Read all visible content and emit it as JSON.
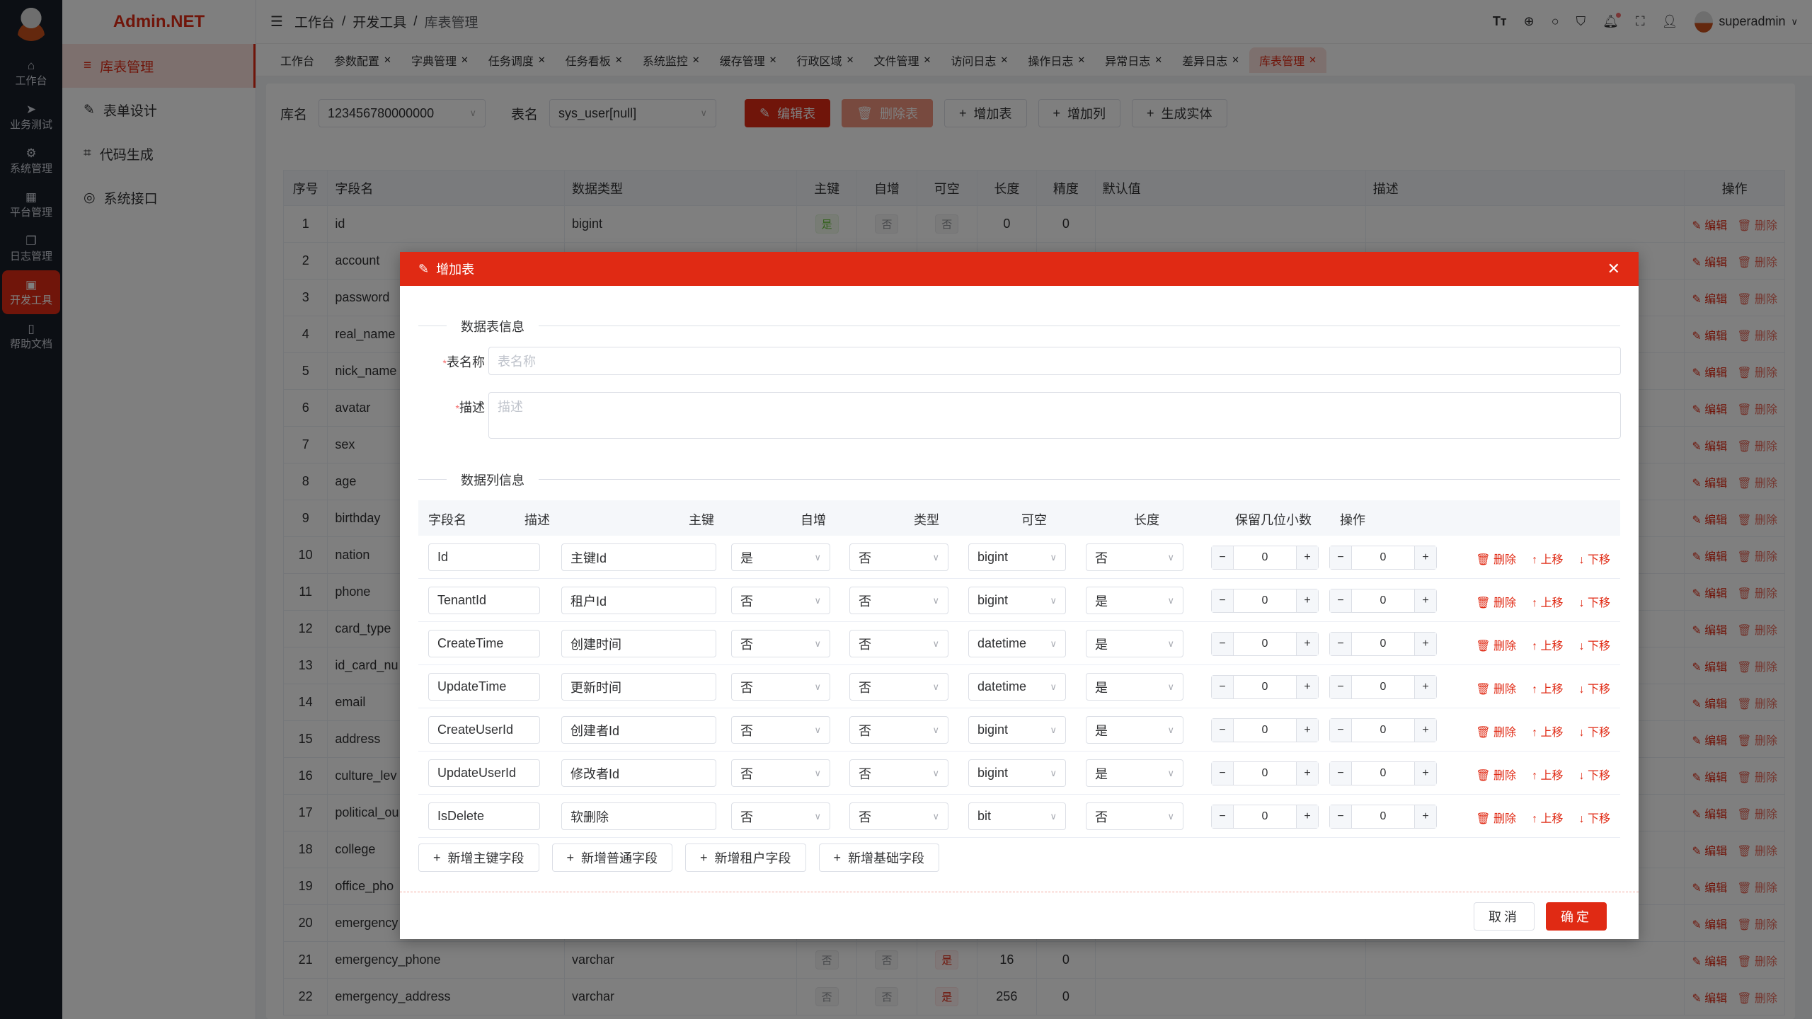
{
  "app": {
    "brand": "Admin.NET",
    "watermark": "Admin.NET",
    "accent": "#e02a14"
  },
  "rail": [
    {
      "icon": "home-icon",
      "label": "工作台"
    },
    {
      "icon": "send-icon",
      "label": "业务测试"
    },
    {
      "icon": "gear-icon",
      "label": "系统管理"
    },
    {
      "icon": "grid-icon",
      "label": "平台管理"
    },
    {
      "icon": "copy-icon",
      "label": "日志管理"
    },
    {
      "icon": "chip-icon",
      "label": "开发工具",
      "active": true
    },
    {
      "icon": "notebook-icon",
      "label": "帮助文档"
    }
  ],
  "sidebar": [
    {
      "icon": "database-icon",
      "label": "库表管理",
      "active": true
    },
    {
      "icon": "edit-icon",
      "label": "表单设计"
    },
    {
      "icon": "crop-icon",
      "label": "代码生成"
    },
    {
      "icon": "lifebuoy-icon",
      "label": "系统接口"
    }
  ],
  "breadcrumb": [
    "工作台",
    "开发工具",
    "库表管理"
  ],
  "user": {
    "name": "superadmin"
  },
  "tabs": [
    {
      "label": "工作台"
    },
    {
      "label": "参数配置"
    },
    {
      "label": "字典管理"
    },
    {
      "label": "任务调度"
    },
    {
      "label": "任务看板"
    },
    {
      "label": "系统监控"
    },
    {
      "label": "缓存管理"
    },
    {
      "label": "行政区域"
    },
    {
      "label": "文件管理"
    },
    {
      "label": "访问日志"
    },
    {
      "label": "操作日志"
    },
    {
      "label": "异常日志"
    },
    {
      "label": "差异日志"
    },
    {
      "label": "库表管理",
      "active": true
    }
  ],
  "toolbar": {
    "db_label": "库名",
    "db_value": "123456780000000",
    "table_label": "表名",
    "table_value": "sys_user[null]",
    "edit": "编辑表",
    "delete": "删除表",
    "add_table": "增加表",
    "add_column": "增加列",
    "gen_entity": "生成实体"
  },
  "bg_table": {
    "headers": [
      "序号",
      "字段名",
      "数据类型",
      "主键",
      "自增",
      "可空",
      "长度",
      "精度",
      "默认值",
      "描述",
      "操作"
    ],
    "edit": "编辑",
    "delete": "删除",
    "rows": [
      {
        "no": "1",
        "name": "id",
        "type": "bigint",
        "pk": "是",
        "inc": "否",
        "null": "否",
        "len": "0",
        "prec": "0"
      },
      {
        "no": "2",
        "name": "account"
      },
      {
        "no": "3",
        "name": "password"
      },
      {
        "no": "4",
        "name": "real_name"
      },
      {
        "no": "5",
        "name": "nick_name"
      },
      {
        "no": "6",
        "name": "avatar"
      },
      {
        "no": "7",
        "name": "sex"
      },
      {
        "no": "8",
        "name": "age"
      },
      {
        "no": "9",
        "name": "birthday"
      },
      {
        "no": "10",
        "name": "nation"
      },
      {
        "no": "11",
        "name": "phone"
      },
      {
        "no": "12",
        "name": "card_type"
      },
      {
        "no": "13",
        "name": "id_card_nu"
      },
      {
        "no": "14",
        "name": "email"
      },
      {
        "no": "15",
        "name": "address"
      },
      {
        "no": "16",
        "name": "culture_lev"
      },
      {
        "no": "17",
        "name": "political_ou"
      },
      {
        "no": "18",
        "name": "college"
      },
      {
        "no": "19",
        "name": "office_pho"
      },
      {
        "no": "20",
        "name": "emergency"
      },
      {
        "no": "21",
        "name": "emergency_phone",
        "type": "varchar",
        "pk": "否",
        "inc": "否",
        "null": "是",
        "len": "16",
        "prec": "0"
      },
      {
        "no": "22",
        "name": "emergency_address",
        "type": "varchar",
        "pk": "否",
        "inc": "否",
        "null": "是",
        "len": "256",
        "prec": "0"
      }
    ]
  },
  "dialog": {
    "title": "增加表",
    "section_table": "数据表信息",
    "name_label": "表名称",
    "name_placeholder": "表名称",
    "desc_label": "描述",
    "desc_placeholder": "描述",
    "section_columns": "数据列信息",
    "col_headers": [
      "字段名",
      "描述",
      "主键",
      "自增",
      "类型",
      "可空",
      "长度",
      "保留几位小数",
      "操作"
    ],
    "row_ops": {
      "delete": "删除",
      "up": "上移",
      "down": "下移"
    },
    "rows": [
      {
        "name": "Id",
        "desc": "主键Id",
        "pk": "是",
        "inc": "否",
        "type": "bigint",
        "null": "否",
        "len": "0",
        "dec": "0"
      },
      {
        "name": "TenantId",
        "desc": "租户Id",
        "pk": "否",
        "inc": "否",
        "type": "bigint",
        "null": "是",
        "len": "0",
        "dec": "0"
      },
      {
        "name": "CreateTime",
        "desc": "创建时间",
        "pk": "否",
        "inc": "否",
        "type": "datetime",
        "null": "是",
        "len": "0",
        "dec": "0"
      },
      {
        "name": "UpdateTime",
        "desc": "更新时间",
        "pk": "否",
        "inc": "否",
        "type": "datetime",
        "null": "是",
        "len": "0",
        "dec": "0"
      },
      {
        "name": "CreateUserId",
        "desc": "创建者Id",
        "pk": "否",
        "inc": "否",
        "type": "bigint",
        "null": "是",
        "len": "0",
        "dec": "0"
      },
      {
        "name": "UpdateUserId",
        "desc": "修改者Id",
        "pk": "否",
        "inc": "否",
        "type": "bigint",
        "null": "是",
        "len": "0",
        "dec": "0"
      },
      {
        "name": "IsDelete",
        "desc": "软删除",
        "pk": "否",
        "inc": "否",
        "type": "bit",
        "null": "否",
        "len": "0",
        "dec": "0"
      }
    ],
    "add_buttons": [
      "新增主键字段",
      "新增普通字段",
      "新增租户字段",
      "新增基础字段"
    ],
    "cancel": "取消",
    "ok": "确定"
  }
}
